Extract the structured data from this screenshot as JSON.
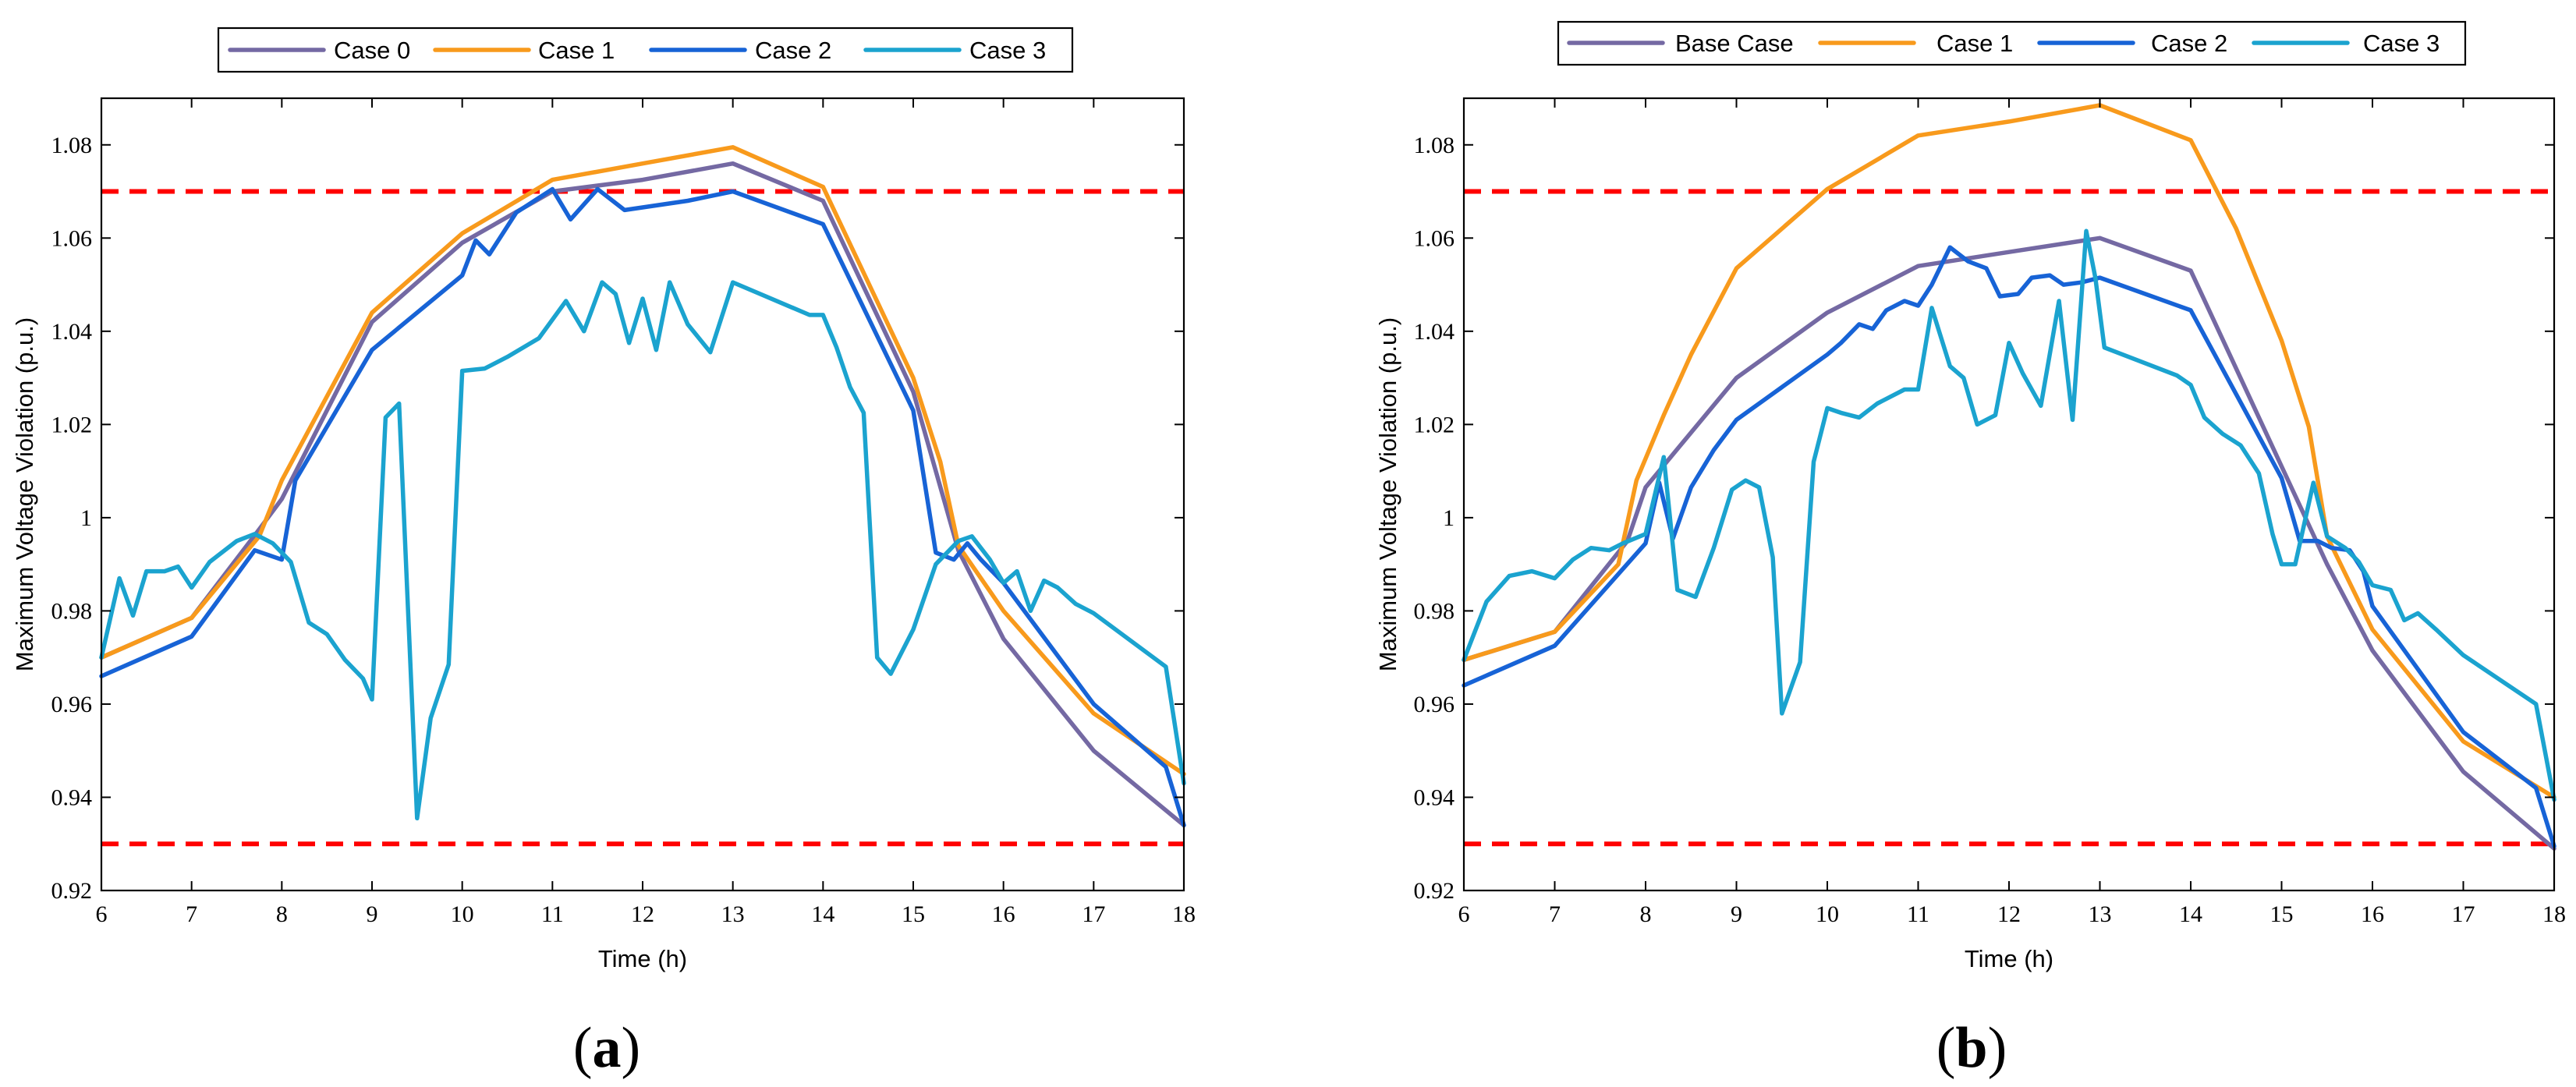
{
  "chart_data": [
    {
      "type": "line",
      "panel_label": "a",
      "title": "",
      "xlabel": "Time (h)",
      "ylabel": "Maximum Voltage Violation (p.u.)",
      "xlim": [
        6,
        18
      ],
      "ylim": [
        0.92,
        1.09
      ],
      "xticks": [
        6,
        7,
        8,
        9,
        10,
        11,
        12,
        13,
        14,
        15,
        16,
        17,
        18
      ],
      "yticks": [
        0.92,
        0.94,
        0.96,
        0.98,
        1,
        1.02,
        1.04,
        1.06,
        1.08
      ],
      "ytick_labels": [
        "0.92",
        "0.94",
        "0.96",
        "0.98",
        "1",
        "1.02",
        "1.04",
        "1.06",
        "1.08"
      ],
      "grid": false,
      "legend_position": "top-center, outside",
      "limits": [
        1.07,
        0.93
      ],
      "series": [
        {
          "name": "Case 0",
          "color": "#7469a3",
          "x": [
            6,
            7,
            7.75,
            8,
            9,
            10,
            11,
            12,
            13,
            14,
            15,
            15.5,
            16,
            17,
            18
          ],
          "y": [
            0.97,
            0.9785,
            0.9975,
            1.004,
            1.042,
            1.059,
            1.07,
            1.0725,
            1.076,
            1.068,
            1.027,
            0.993,
            0.974,
            0.95,
            0.934
          ]
        },
        {
          "name": "Case 1",
          "color": "#f89a1c",
          "x": [
            6,
            7,
            7.75,
            8,
            9,
            10,
            11,
            12,
            13,
            14,
            15,
            15.3,
            15.5,
            16,
            17,
            18
          ],
          "y": [
            0.97,
            0.9785,
            0.996,
            1.008,
            1.044,
            1.061,
            1.0725,
            1.076,
            1.0795,
            1.071,
            1.03,
            1.012,
            0.994,
            0.98,
            0.958,
            0.945
          ]
        },
        {
          "name": "Case 2",
          "color": "#1763d6",
          "x": [
            6,
            7,
            7.7,
            8,
            8.15,
            9,
            10,
            10.15,
            10.3,
            10.6,
            11,
            11.2,
            11.5,
            11.8,
            12.5,
            13,
            14,
            15,
            15.25,
            15.45,
            15.6,
            15.75,
            16,
            17,
            17.8,
            18
          ],
          "y": [
            0.966,
            0.9745,
            0.993,
            0.991,
            1.008,
            1.036,
            1.052,
            1.0595,
            1.0565,
            1.0655,
            1.0705,
            1.064,
            1.0705,
            1.066,
            1.068,
            1.07,
            1.063,
            1.023,
            0.9925,
            0.991,
            0.9945,
            0.991,
            0.986,
            0.96,
            0.9465,
            0.934
          ]
        },
        {
          "name": "Case 3",
          "color": "#1ba3cf",
          "x": [
            6,
            6.2,
            6.35,
            6.5,
            6.7,
            6.85,
            7,
            7.2,
            7.5,
            7.7,
            7.9,
            8.1,
            8.3,
            8.5,
            8.7,
            8.9,
            9,
            9.15,
            9.3,
            9.5,
            9.65,
            9.85,
            10,
            10.25,
            10.5,
            10.85,
            11.15,
            11.35,
            11.55,
            11.7,
            11.85,
            12,
            12.15,
            12.3,
            12.5,
            12.75,
            13,
            13.85,
            14,
            14.15,
            14.3,
            14.45,
            14.6,
            14.75,
            15,
            15.25,
            15.5,
            15.65,
            15.85,
            16,
            16.15,
            16.3,
            16.45,
            16.6,
            16.8,
            17,
            17.8,
            18
          ],
          "y": [
            0.97,
            0.987,
            0.979,
            0.9885,
            0.9885,
            0.9895,
            0.985,
            0.9905,
            0.995,
            0.9965,
            0.9945,
            0.9905,
            0.9775,
            0.975,
            0.9695,
            0.9655,
            0.961,
            1.0215,
            1.0245,
            0.9355,
            0.957,
            0.9685,
            1.0315,
            1.032,
            1.0345,
            1.0385,
            1.0465,
            1.04,
            1.0505,
            1.048,
            1.0375,
            1.047,
            1.036,
            1.0505,
            1.0415,
            1.0355,
            1.0505,
            1.0435,
            1.0435,
            1.0365,
            1.028,
            1.0225,
            0.97,
            0.9665,
            0.976,
            0.99,
            0.995,
            0.996,
            0.991,
            0.986,
            0.9885,
            0.98,
            0.9865,
            0.985,
            0.9815,
            0.9795,
            0.968,
            0.943
          ]
        }
      ]
    },
    {
      "type": "line",
      "panel_label": "b",
      "title": "",
      "xlabel": "Time (h)",
      "ylabel": "Maximum Voltage Violation (p.u.)",
      "xlim": [
        6,
        18
      ],
      "ylim": [
        0.92,
        1.09
      ],
      "xticks": [
        6,
        7,
        8,
        9,
        10,
        11,
        12,
        13,
        14,
        15,
        16,
        17,
        18
      ],
      "yticks": [
        0.92,
        0.94,
        0.96,
        0.98,
        1,
        1.02,
        1.04,
        1.06,
        1.08
      ],
      "ytick_labels": [
        "0.92",
        "0.94",
        "0.96",
        "0.98",
        "1",
        "1.02",
        "1.04",
        "1.06",
        "1.08"
      ],
      "grid": false,
      "legend_position": "top-center, outside",
      "limits": [
        1.07,
        0.93
      ],
      "series": [
        {
          "name": "Base Case",
          "color": "#7469a3",
          "x": [
            6,
            7,
            7.8,
            8,
            9,
            10,
            11,
            12,
            13,
            14,
            15,
            15.5,
            16,
            17,
            18
          ],
          "y": [
            0.9695,
            0.9755,
            0.995,
            1.0065,
            1.03,
            1.044,
            1.054,
            1.057,
            1.06,
            1.053,
            1.011,
            0.99,
            0.9715,
            0.9455,
            0.929
          ]
        },
        {
          "name": "Case 1",
          "color": "#f89a1c",
          "x": [
            6,
            7,
            7.7,
            7.9,
            8.2,
            8.5,
            9,
            10,
            11,
            12,
            13,
            14,
            14.5,
            15,
            15.3,
            15.5,
            16,
            17,
            18
          ],
          "y": [
            0.9695,
            0.9755,
            0.99,
            1.008,
            1.022,
            1.035,
            1.0535,
            1.0705,
            1.082,
            1.085,
            1.0885,
            1.081,
            1.062,
            1.038,
            1.0195,
            0.996,
            0.976,
            0.952,
            0.94
          ]
        },
        {
          "name": "Case 2",
          "color": "#1763d6",
          "x": [
            6,
            7,
            8,
            8.15,
            8.3,
            8.5,
            8.75,
            9,
            10,
            10.15,
            10.35,
            10.5,
            10.65,
            10.85,
            11,
            11.15,
            11.35,
            11.55,
            11.75,
            11.9,
            12.1,
            12.25,
            12.45,
            12.6,
            12.8,
            13,
            14,
            15,
            15.2,
            15.4,
            15.55,
            15.75,
            15.9,
            16,
            17,
            17.8,
            18
          ],
          "y": [
            0.964,
            0.9725,
            0.9945,
            1.0075,
            0.9955,
            1.0065,
            1.0145,
            1.021,
            1.035,
            1.0375,
            1.0415,
            1.0405,
            1.0445,
            1.0465,
            1.0455,
            1.05,
            1.058,
            1.055,
            1.0535,
            1.0475,
            1.048,
            1.0515,
            1.052,
            1.05,
            1.0505,
            1.0515,
            1.0445,
            1.0085,
            0.995,
            0.995,
            0.9935,
            0.993,
            0.9885,
            0.981,
            0.954,
            0.942,
            0.9295
          ]
        },
        {
          "name": "Case 3",
          "color": "#1ba3cf",
          "x": [
            6,
            6.25,
            6.5,
            6.75,
            7,
            7.2,
            7.4,
            7.6,
            7.75,
            8,
            8.2,
            8.35,
            8.55,
            8.75,
            8.95,
            9.1,
            9.25,
            9.4,
            9.5,
            9.7,
            9.85,
            10,
            10.15,
            10.35,
            10.55,
            10.85,
            11,
            11.15,
            11.35,
            11.5,
            11.65,
            11.85,
            12,
            12.15,
            12.35,
            12.55,
            12.7,
            12.85,
            12.95,
            13.05,
            13.85,
            14,
            14.15,
            14.35,
            14.55,
            14.75,
            14.9,
            15,
            15.15,
            15.35,
            15.5,
            15.7,
            15.85,
            16,
            16.2,
            16.35,
            16.5,
            16.7,
            17,
            17.8,
            18
          ],
          "y": [
            0.9695,
            0.982,
            0.9875,
            0.9885,
            0.987,
            0.991,
            0.9935,
            0.993,
            0.9945,
            0.9965,
            1.013,
            0.9845,
            0.983,
            0.9935,
            1.006,
            1.008,
            1.0065,
            0.9915,
            0.958,
            0.969,
            1.012,
            1.0235,
            1.0225,
            1.0215,
            1.0245,
            1.0275,
            1.0275,
            1.045,
            1.0325,
            1.03,
            1.02,
            1.022,
            1.0375,
            1.031,
            1.024,
            1.0465,
            1.021,
            1.0615,
            1.0515,
            1.0365,
            1.0305,
            1.0285,
            1.0215,
            1.018,
            1.0155,
            1.0095,
            0.9965,
            0.99,
            0.99,
            1.0075,
            0.996,
            0.9935,
            0.9905,
            0.9855,
            0.9845,
            0.978,
            0.9795,
            0.976,
            0.9705,
            0.96,
            0.9395
          ]
        }
      ]
    }
  ]
}
